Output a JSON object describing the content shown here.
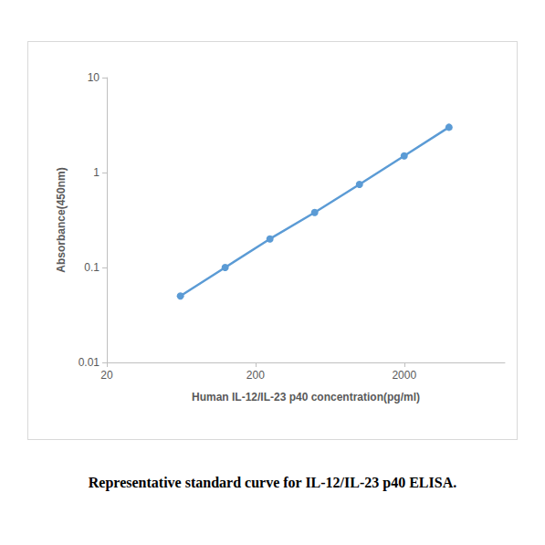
{
  "chart_data": {
    "type": "line",
    "caption": "Representative standard curve for IL-12/IL-23 p40 ELISA.",
    "x_label": "Human IL-12/IL-23 p40 concentration(pg/ml)",
    "y_label": "Absorbance(450nm)",
    "x": [
      62.5,
      125,
      250,
      500,
      1000,
      2000,
      4000
    ],
    "values": [
      0.05,
      0.1,
      0.2,
      0.38,
      0.75,
      1.5,
      3.0
    ],
    "color": "#5b9bd5",
    "marker": "circle",
    "line_style": "solid",
    "log": true,
    "xlim": [
      20,
      9500
    ],
    "xticks": [
      20,
      200,
      2000
    ],
    "ylim": [
      0.01,
      10
    ],
    "yticks": [
      0.01,
      0.1,
      1,
      10
    ],
    "grid": false
  }
}
